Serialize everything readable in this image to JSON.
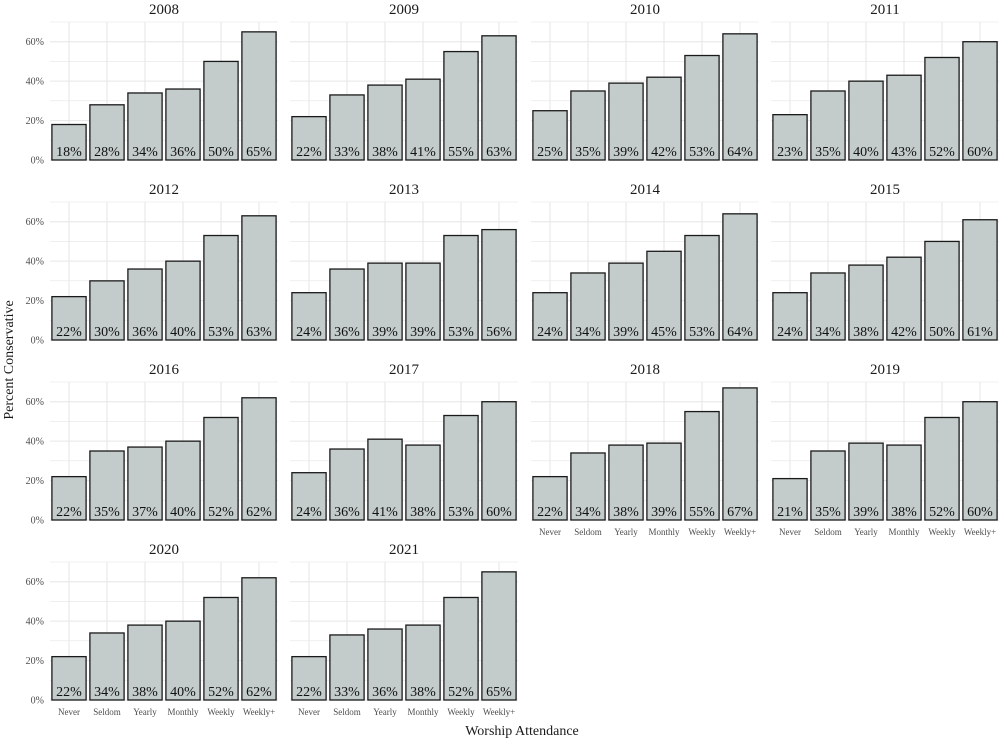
{
  "chart_data": {
    "type": "bar",
    "xlabel": "Worship Attendance",
    "ylabel": "Percent Conservative",
    "categories": [
      "Never",
      "Seldom",
      "Yearly",
      "Monthly",
      "Weekly",
      "Weekly+"
    ],
    "ylim": [
      0,
      70
    ],
    "yticks": [
      0,
      20,
      40,
      60
    ],
    "ytick_labels": [
      "0%",
      "20%",
      "40%",
      "60%"
    ],
    "grid": true,
    "colors": {
      "bar_fill": "#c3cccb",
      "bar_stroke": "#1a1a1a",
      "grid": "#e6e6e6"
    },
    "panels": [
      {
        "title": "2008",
        "values": [
          18,
          28,
          34,
          36,
          50,
          65
        ],
        "labels": [
          "18%",
          "28%",
          "34%",
          "36%",
          "50%",
          "65%"
        ]
      },
      {
        "title": "2009",
        "values": [
          22,
          33,
          38,
          41,
          55,
          63
        ],
        "labels": [
          "22%",
          "33%",
          "38%",
          "41%",
          "55%",
          "63%"
        ]
      },
      {
        "title": "2010",
        "values": [
          25,
          35,
          39,
          42,
          53,
          64
        ],
        "labels": [
          "25%",
          "35%",
          "39%",
          "42%",
          "53%",
          "64%"
        ]
      },
      {
        "title": "2011",
        "values": [
          23,
          35,
          40,
          43,
          52,
          60
        ],
        "labels": [
          "23%",
          "35%",
          "40%",
          "43%",
          "52%",
          "60%"
        ]
      },
      {
        "title": "2012",
        "values": [
          22,
          30,
          36,
          40,
          53,
          63
        ],
        "labels": [
          "22%",
          "30%",
          "36%",
          "40%",
          "53%",
          "63%"
        ]
      },
      {
        "title": "2013",
        "values": [
          24,
          36,
          39,
          39,
          53,
          56
        ],
        "labels": [
          "24%",
          "36%",
          "39%",
          "39%",
          "53%",
          "56%"
        ]
      },
      {
        "title": "2014",
        "values": [
          24,
          34,
          39,
          45,
          53,
          64
        ],
        "labels": [
          "24%",
          "34%",
          "39%",
          "45%",
          "53%",
          "64%"
        ]
      },
      {
        "title": "2015",
        "values": [
          24,
          34,
          38,
          42,
          50,
          61
        ],
        "labels": [
          "24%",
          "34%",
          "38%",
          "42%",
          "50%",
          "61%"
        ]
      },
      {
        "title": "2016",
        "values": [
          22,
          35,
          37,
          40,
          52,
          62
        ],
        "labels": [
          "22%",
          "35%",
          "37%",
          "40%",
          "52%",
          "62%"
        ]
      },
      {
        "title": "2017",
        "values": [
          24,
          36,
          41,
          38,
          53,
          60
        ],
        "labels": [
          "24%",
          "36%",
          "41%",
          "38%",
          "53%",
          "60%"
        ]
      },
      {
        "title": "2018",
        "values": [
          22,
          34,
          38,
          39,
          55,
          67
        ],
        "labels": [
          "22%",
          "34%",
          "38%",
          "39%",
          "55%",
          "67%"
        ]
      },
      {
        "title": "2019",
        "values": [
          21,
          35,
          39,
          38,
          52,
          60
        ],
        "labels": [
          "21%",
          "35%",
          "39%",
          "38%",
          "52%",
          "60%"
        ]
      },
      {
        "title": "2020",
        "values": [
          22,
          34,
          38,
          40,
          52,
          62
        ],
        "labels": [
          "22%",
          "34%",
          "38%",
          "40%",
          "52%",
          "62%"
        ]
      },
      {
        "title": "2021",
        "values": [
          22,
          33,
          36,
          38,
          52,
          65
        ],
        "labels": [
          "22%",
          "33%",
          "36%",
          "38%",
          "52%",
          "65%"
        ]
      }
    ],
    "x_tick_panels": [
      "2018",
      "2019",
      "2020",
      "2021"
    ]
  }
}
